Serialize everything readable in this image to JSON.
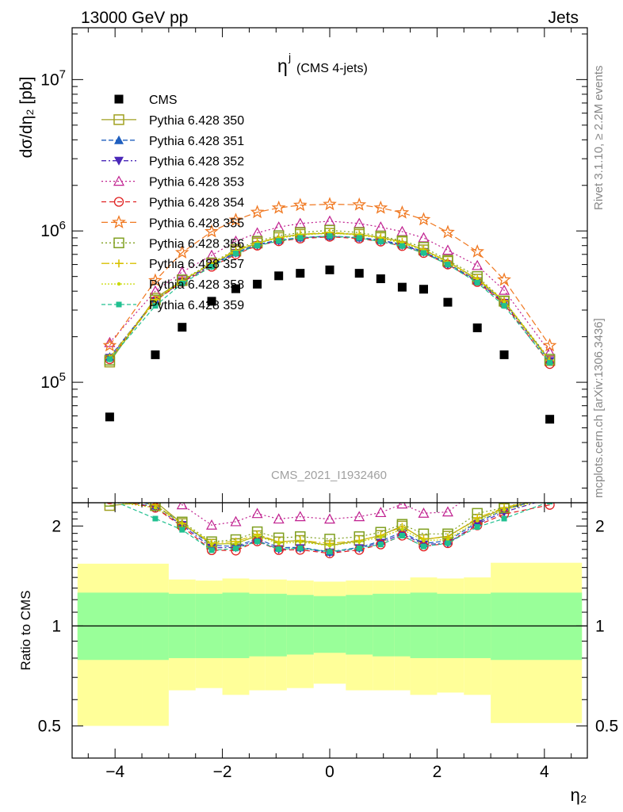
{
  "header": {
    "left": "13000 GeV pp",
    "right": "Jets"
  },
  "plot_title": {
    "symbol": "η",
    "superscript": "j",
    "subtitle": "(CMS 4-jets)"
  },
  "side_labels": {
    "rivet": "Rivet 3.1.10, ≥ 2.2M events",
    "mcplots": "mcplots.cern.ch [arXiv:1306.3436]"
  },
  "watermark": "CMS_2021_I1932460",
  "axes": {
    "y_main_label": "dσ/dη₂ [pb]",
    "y_ratio_label": "Ratio to CMS",
    "x_label": "η₂"
  },
  "chart_data": {
    "type": "scatter",
    "xlim": [
      -4.8,
      4.8
    ],
    "ylim_main": [
      16000,
      22000000
    ],
    "ylim_ratio": [
      0.4,
      2.35
    ],
    "y_scale_main": "log",
    "y_scale_ratio": "log",
    "x_ticks": [
      "−4",
      "−2",
      "0",
      "2",
      "4"
    ],
    "y_ticks_main": [
      "10^5",
      "10^6",
      "10^7"
    ],
    "y_ticks_ratio": [
      "0.5",
      "1",
      "2"
    ],
    "legend_position": "top-left",
    "x": [
      -4.1,
      -3.25,
      -2.75,
      -2.2,
      -1.75,
      -1.35,
      -0.95,
      -0.55,
      0,
      0.55,
      0.95,
      1.35,
      1.75,
      2.2,
      2.75,
      3.25,
      4.1
    ],
    "bin_edges": [
      -4.7,
      -3.5,
      -3.0,
      -2.5,
      -2.0,
      -1.5,
      -1.2,
      -0.8,
      -0.3,
      0.3,
      0.8,
      1.2,
      1.5,
      2.0,
      2.5,
      3.0,
      3.5,
      4.7
    ],
    "cms": [
      59000,
      152000,
      231000,
      343000,
      415000,
      445000,
      505000,
      525000,
      553000,
      525000,
      483000,
      425000,
      412000,
      338000,
      229000,
      152000,
      57000
    ],
    "band_stat": [
      [
        0.79,
        1.26
      ],
      [
        0.79,
        1.26
      ],
      [
        0.8,
        1.25
      ],
      [
        0.8,
        1.25
      ],
      [
        0.8,
        1.26
      ],
      [
        0.81,
        1.25
      ],
      [
        0.81,
        1.25
      ],
      [
        0.82,
        1.24
      ],
      [
        0.83,
        1.23
      ],
      [
        0.82,
        1.24
      ],
      [
        0.81,
        1.25
      ],
      [
        0.81,
        1.25
      ],
      [
        0.8,
        1.26
      ],
      [
        0.8,
        1.25
      ],
      [
        0.8,
        1.25
      ],
      [
        0.79,
        1.26
      ],
      [
        0.79,
        1.26
      ]
    ],
    "band_sys": [
      [
        0.5,
        1.54
      ],
      [
        0.5,
        1.54
      ],
      [
        0.64,
        1.38
      ],
      [
        0.65,
        1.37
      ],
      [
        0.62,
        1.39
      ],
      [
        0.64,
        1.38
      ],
      [
        0.64,
        1.38
      ],
      [
        0.65,
        1.37
      ],
      [
        0.67,
        1.36
      ],
      [
        0.64,
        1.37
      ],
      [
        0.64,
        1.37
      ],
      [
        0.64,
        1.37
      ],
      [
        0.62,
        1.4
      ],
      [
        0.63,
        1.39
      ],
      [
        0.62,
        1.4
      ],
      [
        0.51,
        1.55
      ],
      [
        0.51,
        1.55
      ]
    ],
    "series": [
      {
        "name": "Pythia 6.428 350",
        "color": "#a0a020",
        "marker": "square-open",
        "dash": "",
        "values": [
          136000,
          360000,
          470000,
          605000,
          735000,
          832000,
          905000,
          950000,
          965000,
          950000,
          905000,
          850000,
          750000,
          630000,
          480000,
          343000,
          139000
        ]
      },
      {
        "name": "Pythia 6.428 351",
        "color": "#1f5fbf",
        "marker": "triangle-up",
        "dash": "6,3",
        "values": [
          147000,
          350000,
          470000,
          600000,
          720000,
          815000,
          870000,
          905000,
          925000,
          905000,
          870000,
          815000,
          730000,
          610000,
          470000,
          340000,
          140000
        ]
      },
      {
        "name": "Pythia 6.428 352",
        "color": "#4a28b8",
        "marker": "triangle-down",
        "dash": "6,3,2,3",
        "values": [
          145000,
          345000,
          465000,
          590000,
          715000,
          805000,
          860000,
          900000,
          920000,
          900000,
          860000,
          805000,
          725000,
          600000,
          465000,
          335000,
          138000
        ]
      },
      {
        "name": "Pythia 6.428 353",
        "color": "#c0208f",
        "marker": "triangle-open",
        "dash": "2,3",
        "values": [
          183000,
          400000,
          535000,
          690000,
          855000,
          970000,
          1060000,
          1120000,
          1160000,
          1120000,
          1060000,
          990000,
          900000,
          745000,
          590000,
          405000,
          158000
        ]
      },
      {
        "name": "Pythia 6.428 354",
        "color": "#e02020",
        "marker": "circle-open",
        "dash": "6,4",
        "values": [
          142000,
          345000,
          460000,
          580000,
          700000,
          800000,
          855000,
          890000,
          915000,
          890000,
          850000,
          795000,
          715000,
          600000,
          460000,
          330000,
          132000
        ]
      },
      {
        "name": "Pythia 6.428 355",
        "color": "#f07820",
        "marker": "star-open",
        "dash": "8,4",
        "values": [
          175000,
          470000,
          720000,
          990000,
          1180000,
          1330000,
          1420000,
          1480000,
          1500000,
          1490000,
          1420000,
          1320000,
          1190000,
          980000,
          730000,
          475000,
          175000
        ]
      },
      {
        "name": "Pythia 6.428 356",
        "color": "#80a020",
        "marker": "square-open",
        "dash": "2,3",
        "values": [
          140000,
          350000,
          475000,
          615000,
          755000,
          855000,
          930000,
          975000,
          1010000,
          975000,
          925000,
          860000,
          780000,
          640000,
          500000,
          345000,
          142000
        ]
      },
      {
        "name": "Pythia 6.428 357",
        "color": "#d8c000",
        "marker": "cross",
        "dash": "10,3,2,3",
        "values": [
          145000,
          352000,
          470000,
          610000,
          745000,
          840000,
          905000,
          950000,
          980000,
          950000,
          905000,
          845000,
          755000,
          625000,
          485000,
          345000,
          140000
        ]
      },
      {
        "name": "Pythia 6.428 358",
        "color": "#c8d800",
        "marker": "dot",
        "dash": "2,2",
        "values": [
          140000,
          345000,
          470000,
          605000,
          735000,
          830000,
          895000,
          940000,
          965000,
          940000,
          895000,
          830000,
          745000,
          615000,
          475000,
          340000,
          138000
        ]
      },
      {
        "name": "Pythia 6.428 359",
        "color": "#20c090",
        "marker": "square-filled",
        "dash": "5,3",
        "values": [
          142000,
          320000,
          450000,
          580000,
          710000,
          800000,
          860000,
          900000,
          925000,
          900000,
          850000,
          795000,
          715000,
          600000,
          455000,
          320000,
          135000
        ]
      }
    ]
  }
}
